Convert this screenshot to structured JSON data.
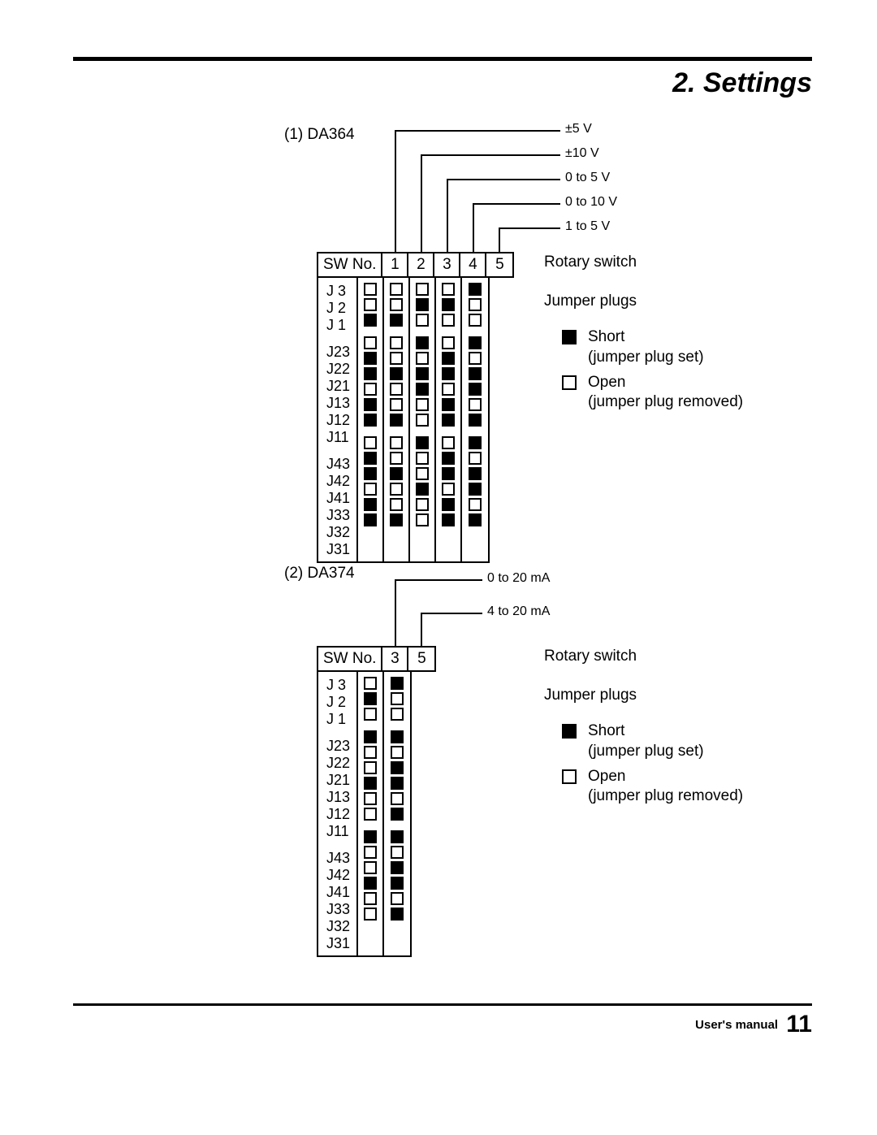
{
  "header": {
    "title": "2. Settings"
  },
  "footer": {
    "label": "User's manual",
    "page": "11"
  },
  "legend": {
    "rotary_switch": "Rotary switch",
    "jumper_plugs": "Jumper plugs",
    "short_label": "Short",
    "short_sub": "(jumper plug set)",
    "open_label": "Open",
    "open_sub": "(jumper plug removed)"
  },
  "sw_header": "SW No.",
  "diagrams": [
    {
      "title": "(1) DA364",
      "columns": [
        "1",
        "2",
        "3",
        "4",
        "5"
      ],
      "leads": [
        {
          "col": 0,
          "label": "±5 V"
        },
        {
          "col": 1,
          "label": "±10 V"
        },
        {
          "col": 2,
          "label": "0 to 5 V"
        },
        {
          "col": 3,
          "label": "0 to 10 V"
        },
        {
          "col": 4,
          "label": "1 to 5 V"
        }
      ],
      "groups": [
        {
          "rows": [
            "J 3",
            "J 2",
            "J 1"
          ],
          "values": [
            [
              0,
              0,
              0,
              0,
              1
            ],
            [
              0,
              0,
              1,
              1,
              0
            ],
            [
              1,
              1,
              0,
              0,
              0
            ]
          ]
        },
        {
          "rows": [
            "J23",
            "J22",
            "J21",
            "J13",
            "J12",
            "J11"
          ],
          "values": [
            [
              0,
              0,
              1,
              0,
              1
            ],
            [
              1,
              0,
              0,
              1,
              0
            ],
            [
              1,
              1,
              1,
              1,
              1
            ],
            [
              0,
              0,
              1,
              0,
              1
            ],
            [
              1,
              0,
              0,
              1,
              0
            ],
            [
              1,
              1,
              0,
              1,
              1
            ]
          ]
        },
        {
          "rows": [
            "J43",
            "J42",
            "J41",
            "J33",
            "J32",
            "J31"
          ],
          "values": [
            [
              0,
              0,
              1,
              0,
              1
            ],
            [
              1,
              0,
              0,
              1,
              0
            ],
            [
              1,
              1,
              0,
              1,
              1
            ],
            [
              0,
              0,
              1,
              0,
              1
            ],
            [
              1,
              0,
              0,
              1,
              0
            ],
            [
              1,
              1,
              0,
              1,
              1
            ]
          ]
        }
      ]
    },
    {
      "title": "(2) DA374",
      "columns": [
        "3",
        "5"
      ],
      "leads": [
        {
          "col": 0,
          "label": "0 to 20 mA"
        },
        {
          "col": 1,
          "label": "4 to 20 mA"
        }
      ],
      "groups": [
        {
          "rows": [
            "J 3",
            "J 2",
            "J 1"
          ],
          "values": [
            [
              0,
              1
            ],
            [
              1,
              0
            ],
            [
              0,
              0
            ]
          ]
        },
        {
          "rows": [
            "J23",
            "J22",
            "J21",
            "J13",
            "J12",
            "J11"
          ],
          "values": [
            [
              1,
              1
            ],
            [
              0,
              0
            ],
            [
              0,
              1
            ],
            [
              1,
              1
            ],
            [
              0,
              0
            ],
            [
              0,
              1
            ]
          ]
        },
        {
          "rows": [
            "J43",
            "J42",
            "J41",
            "J33",
            "J32",
            "J31"
          ],
          "values": [
            [
              1,
              1
            ],
            [
              0,
              0
            ],
            [
              0,
              1
            ],
            [
              1,
              1
            ],
            [
              0,
              0
            ],
            [
              0,
              1
            ]
          ]
        }
      ]
    }
  ]
}
